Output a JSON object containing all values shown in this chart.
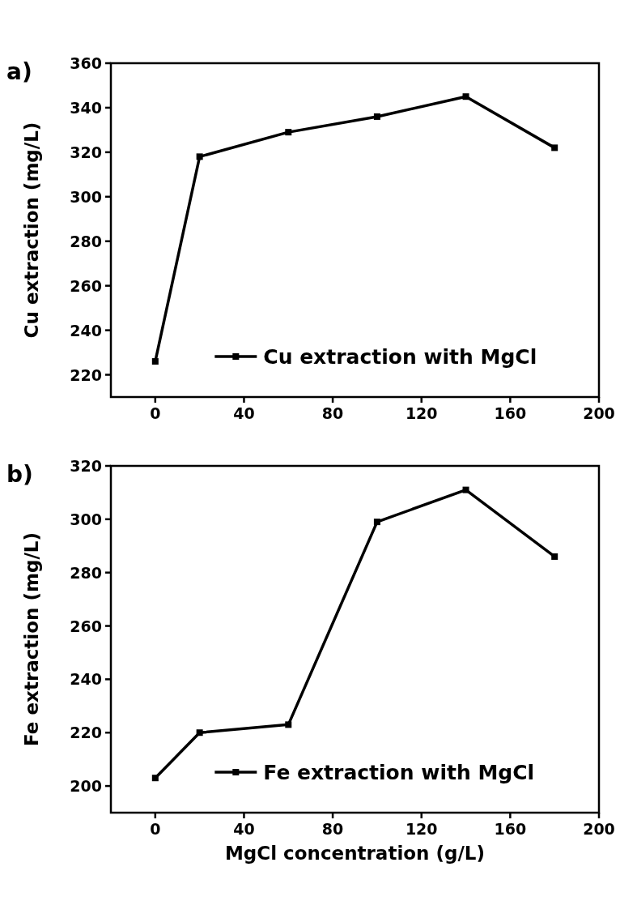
{
  "chart_data": [
    {
      "type": "line",
      "annotations": [
        "a)"
      ],
      "ylabel": "Cu extraction (mg/L)",
      "x": [
        0,
        20,
        60,
        100,
        140,
        180
      ],
      "xlim": [
        -20,
        200
      ],
      "xticks": [
        0,
        40,
        80,
        120,
        160,
        200
      ],
      "ylim": [
        210,
        360
      ],
      "yticks": [
        220,
        240,
        260,
        280,
        300,
        320,
        340,
        360
      ],
      "grid": false,
      "legend": "bottom right",
      "marker": "square",
      "line_style": "solid",
      "series": [
        {
          "name": "Cu extraction with MgCl",
          "color": "#000000",
          "values": [
            226,
            318,
            329,
            336,
            345,
            322
          ]
        }
      ]
    },
    {
      "type": "line",
      "annotations": [
        "b)"
      ],
      "ylabel": "Fe extraction (mg/L)",
      "xlabel": "MgCl concentration (g/L)",
      "x": [
        0,
        20,
        60,
        100,
        140,
        180
      ],
      "xlim": [
        -20,
        200
      ],
      "xticks": [
        0,
        40,
        80,
        120,
        160,
        200
      ],
      "ylim": [
        190,
        320
      ],
      "yticks": [
        200,
        220,
        240,
        260,
        280,
        300,
        320
      ],
      "grid": false,
      "legend": "bottom right",
      "marker": "square",
      "line_style": "solid",
      "series": [
        {
          "name": "Fe extraction with MgCl",
          "color": "#000000",
          "values": [
            203,
            220,
            223,
            299,
            311,
            286
          ]
        }
      ]
    }
  ]
}
